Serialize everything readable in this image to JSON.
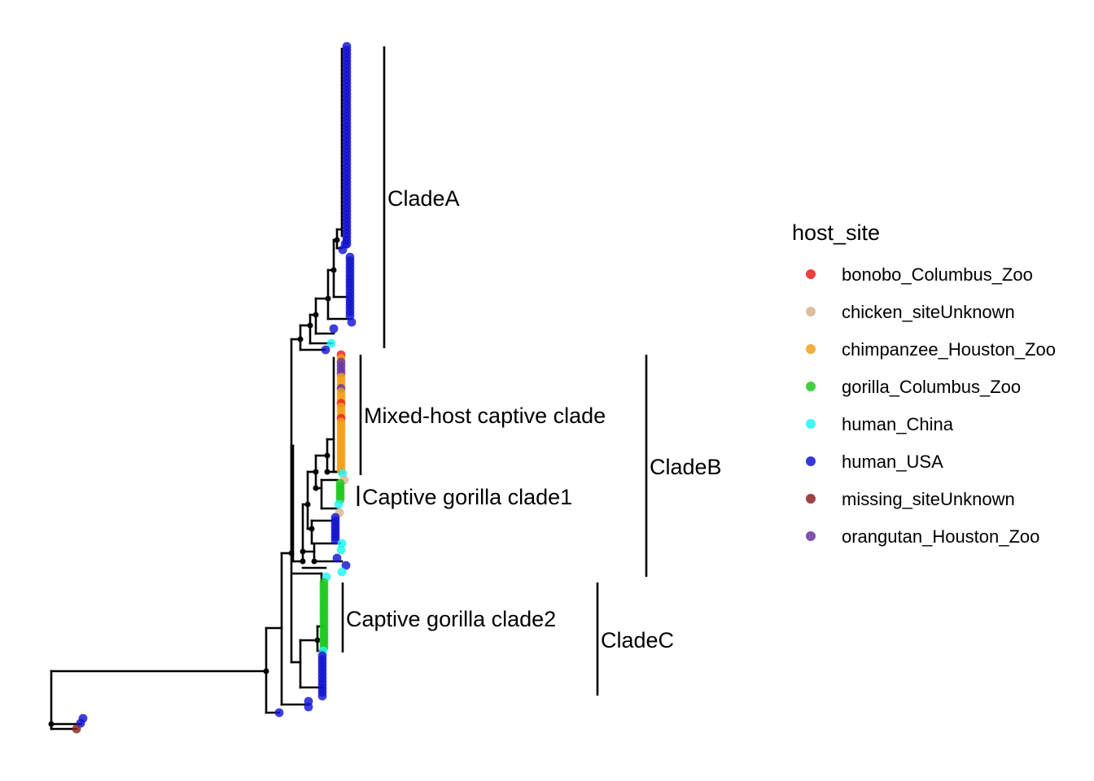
{
  "legend": {
    "title": "host_site",
    "items": [
      {
        "label": "bonobo_Columbus_Zoo",
        "color": "#ee1c1c"
      },
      {
        "label": "chicken_siteUnknown",
        "color": "#d8b48e"
      },
      {
        "label": "chimpanzee_Houston_Zoo",
        "color": "#f0a01a"
      },
      {
        "label": "gorilla_Columbus_Zoo",
        "color": "#1ec81e"
      },
      {
        "label": "human_China",
        "color": "#1ef5f5"
      },
      {
        "label": "human_USA",
        "color": "#1414d2"
      },
      {
        "label": "missing_siteUnknown",
        "color": "#8b2323"
      },
      {
        "label": "orangutan_Houston_Zoo",
        "color": "#6a35a0"
      }
    ]
  },
  "clades": {
    "clade_a": "CladeA",
    "mixed_host": "Mixed-host captive clade",
    "captive_gorilla_1": "Captive gorilla clade1",
    "captive_gorilla_2": "Captive gorilla clade2",
    "clade_b": "CladeB",
    "clade_c": "CladeC"
  }
}
